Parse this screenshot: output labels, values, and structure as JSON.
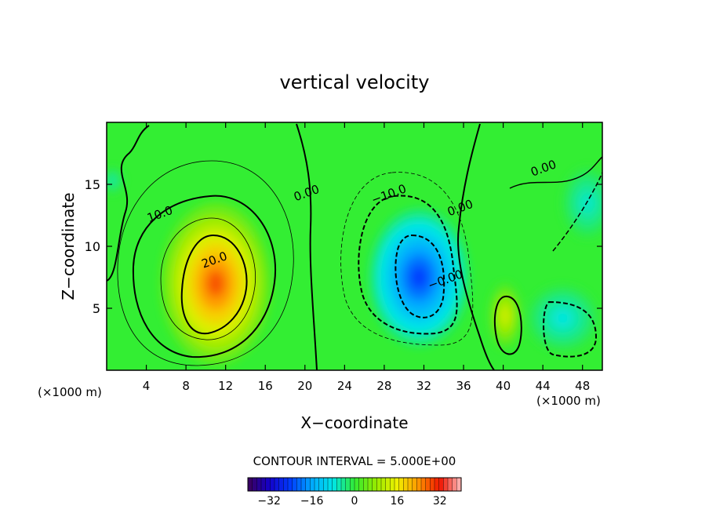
{
  "chart_data": {
    "type": "heatmap",
    "title": "vertical velocity",
    "xlabel": "X−coordinate",
    "ylabel": "Z−coordinate",
    "x_unit_label": "(×1000 m)",
    "x_unit_label_right": "(×1000 m)",
    "xlim": [
      0,
      50
    ],
    "ylim": [
      0,
      20
    ],
    "x_ticks": [
      4,
      8,
      12,
      16,
      20,
      24,
      28,
      32,
      36,
      40,
      44,
      48
    ],
    "y_ticks": [
      5,
      10,
      15
    ],
    "contour_interval_text": "CONTOUR INTERVAL = 5.000E+00",
    "contour_labels": [
      {
        "text": "10.0",
        "x": 5.5,
        "y": 12.3
      },
      {
        "text": "20.0",
        "x": 11.0,
        "y": 8.6
      },
      {
        "text": "0.00",
        "x": 20.3,
        "y": 14.0
      },
      {
        "text": "−10.0",
        "x": 28.6,
        "y": 13.9
      },
      {
        "text": "0.00",
        "x": 35.8,
        "y": 12.8
      },
      {
        "text": "−0.00",
        "x": 34.3,
        "y": 7.0
      },
      {
        "text": "0.00",
        "x": 44.2,
        "y": 16.0
      }
    ],
    "cells": [
      {
        "cx": 11.0,
        "cy": 7.0,
        "rx": 5.5,
        "ry": 6.5,
        "value": 28
      },
      {
        "cx": 40.2,
        "cy": 4.4,
        "rx": 1.6,
        "ry": 2.6,
        "value": 14
      },
      {
        "cx": 31.5,
        "cy": 7.5,
        "rx": 5.0,
        "ry": 5.5,
        "value": -24
      },
      {
        "cx": 46.0,
        "cy": 4.2,
        "rx": 3.5,
        "ry": 2.6,
        "value": -8
      },
      {
        "cx": 48.5,
        "cy": 13.5,
        "rx": 2.5,
        "ry": 2.8,
        "value": -7
      },
      {
        "cx": 0.6,
        "cy": 15.3,
        "rx": 1.0,
        "ry": 1.0,
        "value": -6
      }
    ],
    "colorbar": {
      "range": [
        -40,
        40
      ],
      "ticks": [
        -32,
        -16,
        0,
        16,
        32
      ],
      "tick_labels": [
        "−32",
        "−16",
        "0",
        "16",
        "32"
      ]
    },
    "colors": {
      "background_green": "#33ee33",
      "contour_line": "#000000"
    }
  }
}
